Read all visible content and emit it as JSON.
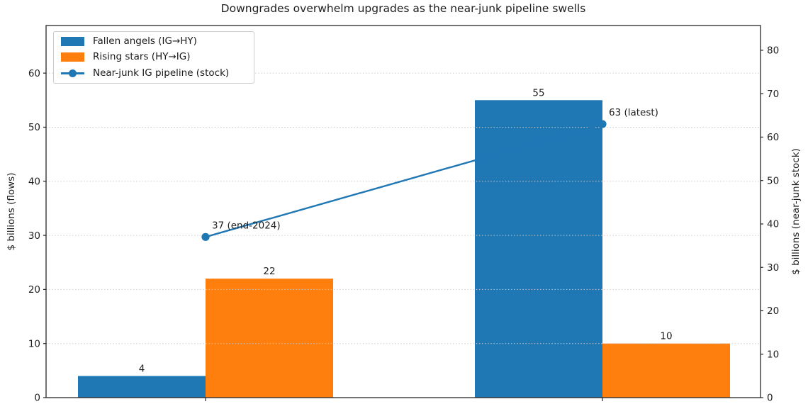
{
  "chart_data": {
    "type": "bar+line combo (dual axis)",
    "title": "Downgrades overwhelm upgrades as the near-junk pipeline swells",
    "categories": [
      "",
      ""
    ],
    "series": [
      {
        "name": "Fallen angels (IG→HY)",
        "kind": "bar",
        "axis": "left",
        "color": "#1f77b4",
        "values": [
          4,
          55
        ],
        "value_labels": [
          "4",
          "55"
        ]
      },
      {
        "name": "Rising stars (HY→IG)",
        "kind": "bar",
        "axis": "left",
        "color": "#ff7f0e",
        "values": [
          22,
          10
        ],
        "value_labels": [
          "22",
          "10"
        ]
      },
      {
        "name": "Near-junk IG pipeline (stock)",
        "kind": "line",
        "axis": "right",
        "color": "#1f77b4",
        "marker": "circle",
        "values": [
          37,
          63
        ],
        "point_labels": [
          "37 (end-2024)",
          "63 (latest)"
        ]
      }
    ],
    "left_axis": {
      "label": "$ billions (flows)",
      "ticks": [
        0,
        10,
        20,
        30,
        40,
        50,
        60
      ],
      "range": [
        0,
        68.8
      ]
    },
    "right_axis": {
      "label": "$ billions (near-junk stock)",
      "ticks": [
        0,
        10,
        20,
        30,
        40,
        50,
        60,
        70,
        80
      ],
      "range": [
        0,
        85.7
      ]
    },
    "grid": {
      "show": true,
      "orientation": "horizontal",
      "source_axis": "left",
      "style": "dotted",
      "color": "#cbcbcb"
    },
    "legend": {
      "position": "upper left"
    },
    "frame_color": "#262626"
  }
}
